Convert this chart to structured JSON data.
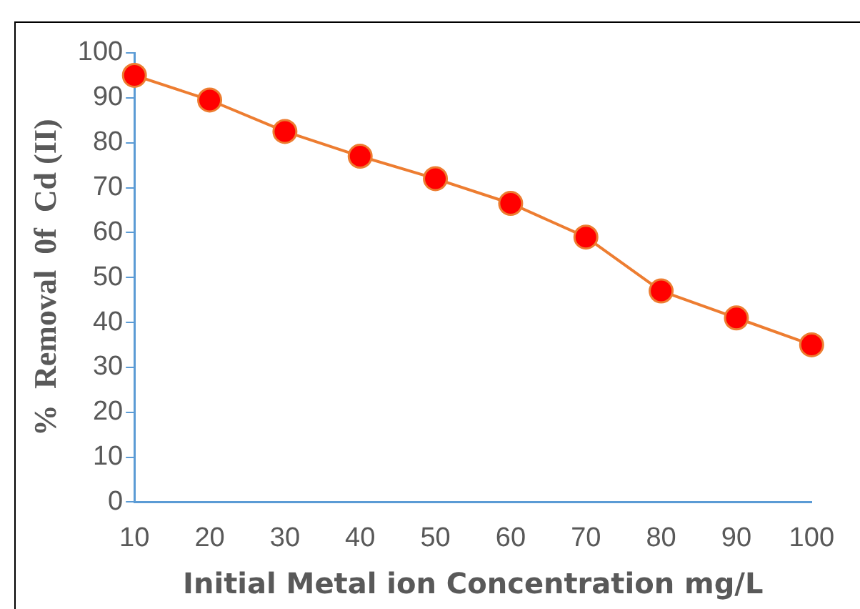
{
  "chart_data": {
    "type": "line",
    "xlabel": "Initial Metal ion Concentration mg/L",
    "ylabel": "%  Removal  0f  Cd (II)",
    "categories": [
      "10",
      "20",
      "30",
      "40",
      "50",
      "60",
      "70",
      "80",
      "90",
      "100"
    ],
    "series": [
      {
        "color": "#ed7d31",
        "values": [
          95,
          89.5,
          82.5,
          77,
          72,
          66.5,
          59,
          47,
          41,
          35
        ]
      }
    ],
    "ylim": [
      0,
      100
    ],
    "yticks": [
      0,
      10,
      20,
      30,
      40,
      50,
      60,
      70,
      80,
      90,
      100
    ],
    "grid": false,
    "legend": false,
    "marker": "circle",
    "line_style": "solid"
  }
}
